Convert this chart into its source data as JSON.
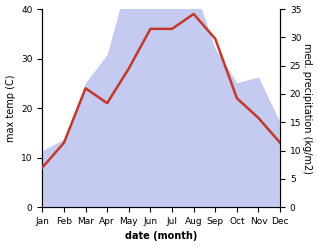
{
  "months": [
    "Jan",
    "Feb",
    "Mar",
    "Apr",
    "May",
    "Jun",
    "Jul",
    "Aug",
    "Sep",
    "Oct",
    "Nov",
    "Dec"
  ],
  "temperature": [
    8,
    13,
    24,
    21,
    28,
    36,
    36,
    39,
    34,
    22,
    18,
    13
  ],
  "precipitation_mm": [
    10,
    12,
    22,
    27,
    41,
    37,
    38,
    39,
    28,
    22,
    23,
    15
  ],
  "temp_color": "#c0392b",
  "precip_fill_color": "#c5caf0",
  "left_ylim": [
    0,
    40
  ],
  "right_ylim": [
    0,
    35
  ],
  "left_yticks": [
    0,
    10,
    20,
    30,
    40
  ],
  "right_yticks": [
    0,
    5,
    10,
    15,
    20,
    25,
    30,
    35
  ],
  "xlabel": "date (month)",
  "ylabel_left": "max temp (C)",
  "ylabel_right": "med. precipitation (kg/m2)",
  "label_fontsize": 7,
  "tick_fontsize": 6.5,
  "linewidth": 1.8,
  "scale_factor": 1.142857
}
